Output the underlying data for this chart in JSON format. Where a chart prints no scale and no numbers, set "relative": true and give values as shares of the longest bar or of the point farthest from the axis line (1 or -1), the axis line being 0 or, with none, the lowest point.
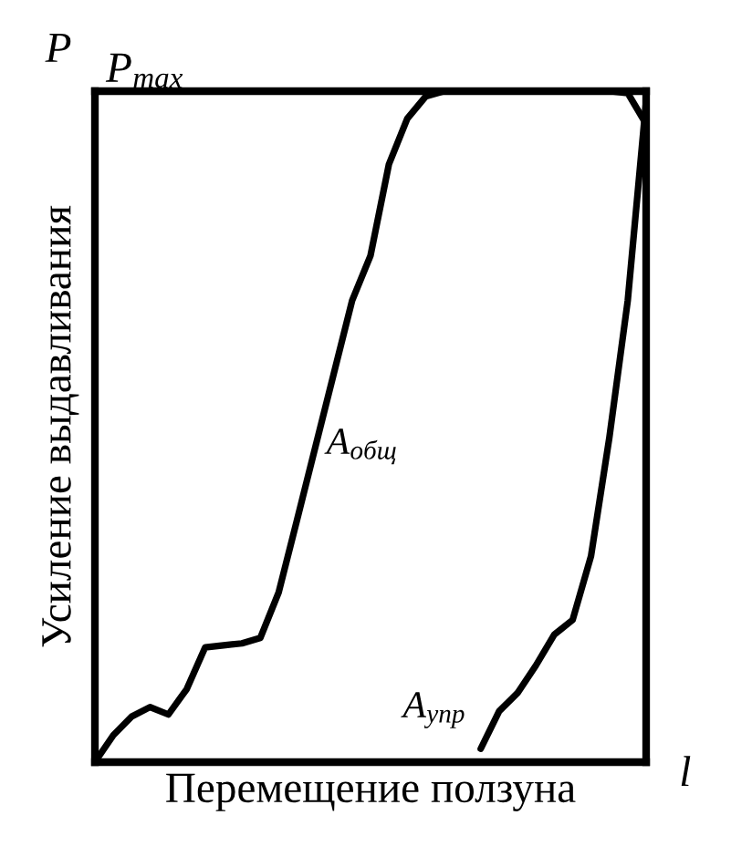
{
  "chart_data": {
    "type": "line",
    "relative": true,
    "xlabel": "Перемещение ползуна",
    "ylabel": "Усиление выдавливания",
    "annotations": [
      "P",
      "P$_{max}$",
      "l"
    ],
    "categories": [
      null,
      null,
      null,
      null,
      null,
      null,
      null,
      null,
      null,
      null,
      null,
      null,
      null,
      null,
      null,
      null,
      null,
      null,
      null,
      null,
      null,
      null,
      null,
      null,
      null,
      null,
      null,
      null,
      null,
      null,
      null
    ],
    "series": [
      {
        "name": "A$_{общ}$",
        "color": "#000000",
        "values": [
          0,
          0.04,
          0.068,
          0.082,
          0.071,
          0.109,
          0.171,
          0.174,
          0.177,
          0.185,
          0.253,
          0.361,
          0.47,
          0.579,
          0.688,
          0.755,
          0.891,
          0.959,
          0.992,
          1,
          1,
          1,
          1,
          1,
          1,
          1,
          1,
          1,
          1,
          0.997,
          0.951
        ]
      },
      {
        "name": "A$_{упр}$",
        "color": "#000000",
        "values": [
          null,
          null,
          null,
          null,
          null,
          null,
          null,
          null,
          null,
          null,
          null,
          null,
          null,
          null,
          null,
          null,
          null,
          null,
          null,
          null,
          null,
          0.02,
          0.076,
          0.103,
          0.144,
          0.19,
          0.212,
          0.307,
          0.484,
          0.688,
          0.986
        ]
      }
    ],
    "marker": "none",
    "line_style": "solid"
  }
}
